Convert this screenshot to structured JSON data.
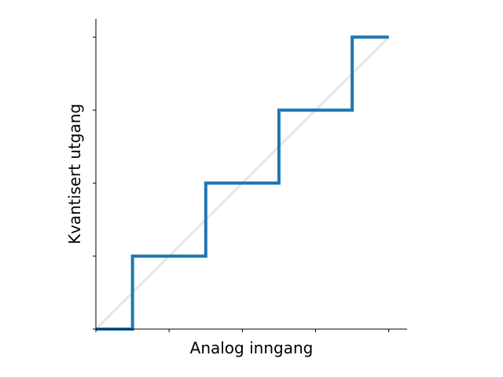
{
  "chart_data": {
    "type": "line",
    "title": "",
    "xlabel": "Analog inngang",
    "ylabel": "Kvantisert utgang",
    "xlim": [
      0,
      4.25
    ],
    "ylim": [
      0,
      4.25
    ],
    "x_ticks": [
      0,
      1,
      2,
      3,
      4
    ],
    "y_ticks": [
      0,
      1,
      2,
      3,
      4
    ],
    "tick_labels_shown": false,
    "grid": false,
    "spines": [
      "left",
      "bottom"
    ],
    "series": [
      {
        "kind": "reference-line",
        "x": [
          0,
          4
        ],
        "y": [
          0,
          4
        ],
        "color": "#e6e6e6"
      },
      {
        "kind": "step",
        "x": [
          0,
          0.5,
          0.5,
          1.5,
          1.5,
          2.5,
          2.5,
          3.5,
          3.5,
          4
        ],
        "y": [
          0,
          0,
          1,
          1,
          2,
          2,
          3,
          3,
          4,
          4
        ],
        "color": "#1f77b4"
      }
    ]
  }
}
